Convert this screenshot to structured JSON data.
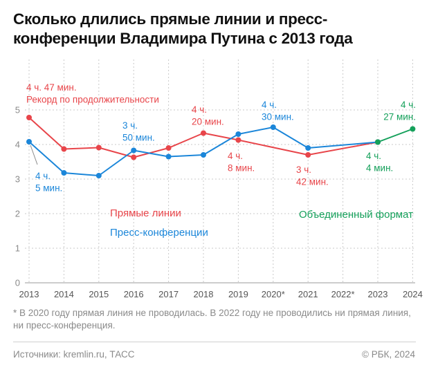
{
  "title": "Сколько длились прямые линии и пресс-конференции Владимира Путина с 2013 года",
  "footnote": "* В 2020 году прямая линия не проводилась. В 2022 году не проводились ни прямая линия, ни пресс-конференция.",
  "source": "Источники: kremlin.ru, ТАСС",
  "copyright": "© РБК, 2024",
  "colors": {
    "red": "#e8454a",
    "blue": "#1b86d9",
    "green": "#14a05a",
    "grid": "#c9c9c9",
    "axis": "#8a8a8a"
  },
  "chart_data": {
    "type": "line",
    "categories": [
      "2013",
      "2014",
      "2015",
      "2016",
      "2017",
      "2018",
      "2019",
      "2020*",
      "2021",
      "2022*",
      "2023",
      "2024"
    ],
    "ylim": [
      0,
      5
    ],
    "y_ticks": [
      "0",
      "1",
      "2",
      "3",
      "4",
      "5"
    ],
    "grid": true,
    "series": [
      {
        "name": "Прямые линии",
        "color": "#e8454a",
        "values": [
          4.78,
          3.87,
          3.91,
          3.63,
          3.9,
          4.33,
          4.13,
          null,
          3.7,
          null,
          4.07,
          null
        ]
      },
      {
        "name": "Пресс-конференции",
        "color": "#1b86d9",
        "values": [
          4.08,
          3.18,
          3.1,
          3.83,
          3.65,
          3.7,
          4.3,
          4.5,
          3.9,
          null,
          4.07,
          null
        ]
      },
      {
        "name": "Объединенный формат",
        "color": "#14a05a",
        "values": [
          null,
          null,
          null,
          null,
          null,
          null,
          null,
          null,
          null,
          null,
          4.07,
          4.45
        ]
      }
    ],
    "annotations": [
      {
        "key": "a2013r",
        "color": "#e8454a",
        "lines": [
          "4 ч. 47 мин.",
          "Рекорд по продолжительности"
        ]
      },
      {
        "key": "a2013b",
        "color": "#1b86d9",
        "lines": [
          "4 ч.",
          "5 мин."
        ]
      },
      {
        "key": "a2016b",
        "color": "#1b86d9",
        "lines": [
          "3 ч.",
          "50 мин."
        ]
      },
      {
        "key": "a2018r",
        "color": "#e8454a",
        "lines": [
          "4 ч.",
          "20 мин."
        ]
      },
      {
        "key": "a2019r",
        "color": "#e8454a",
        "lines": [
          "4 ч.",
          "8 мин."
        ]
      },
      {
        "key": "a2020b",
        "color": "#1b86d9",
        "lines": [
          "4 ч.",
          "30 мин."
        ]
      },
      {
        "key": "a2021r",
        "color": "#e8454a",
        "lines": [
          "3 ч.",
          "42 мин."
        ]
      },
      {
        "key": "a2023g",
        "color": "#14a05a",
        "lines": [
          "4 ч.",
          "4 мин."
        ]
      },
      {
        "key": "a2024g",
        "color": "#14a05a",
        "lines": [
          "4 ч.",
          "27 мин."
        ]
      }
    ]
  }
}
